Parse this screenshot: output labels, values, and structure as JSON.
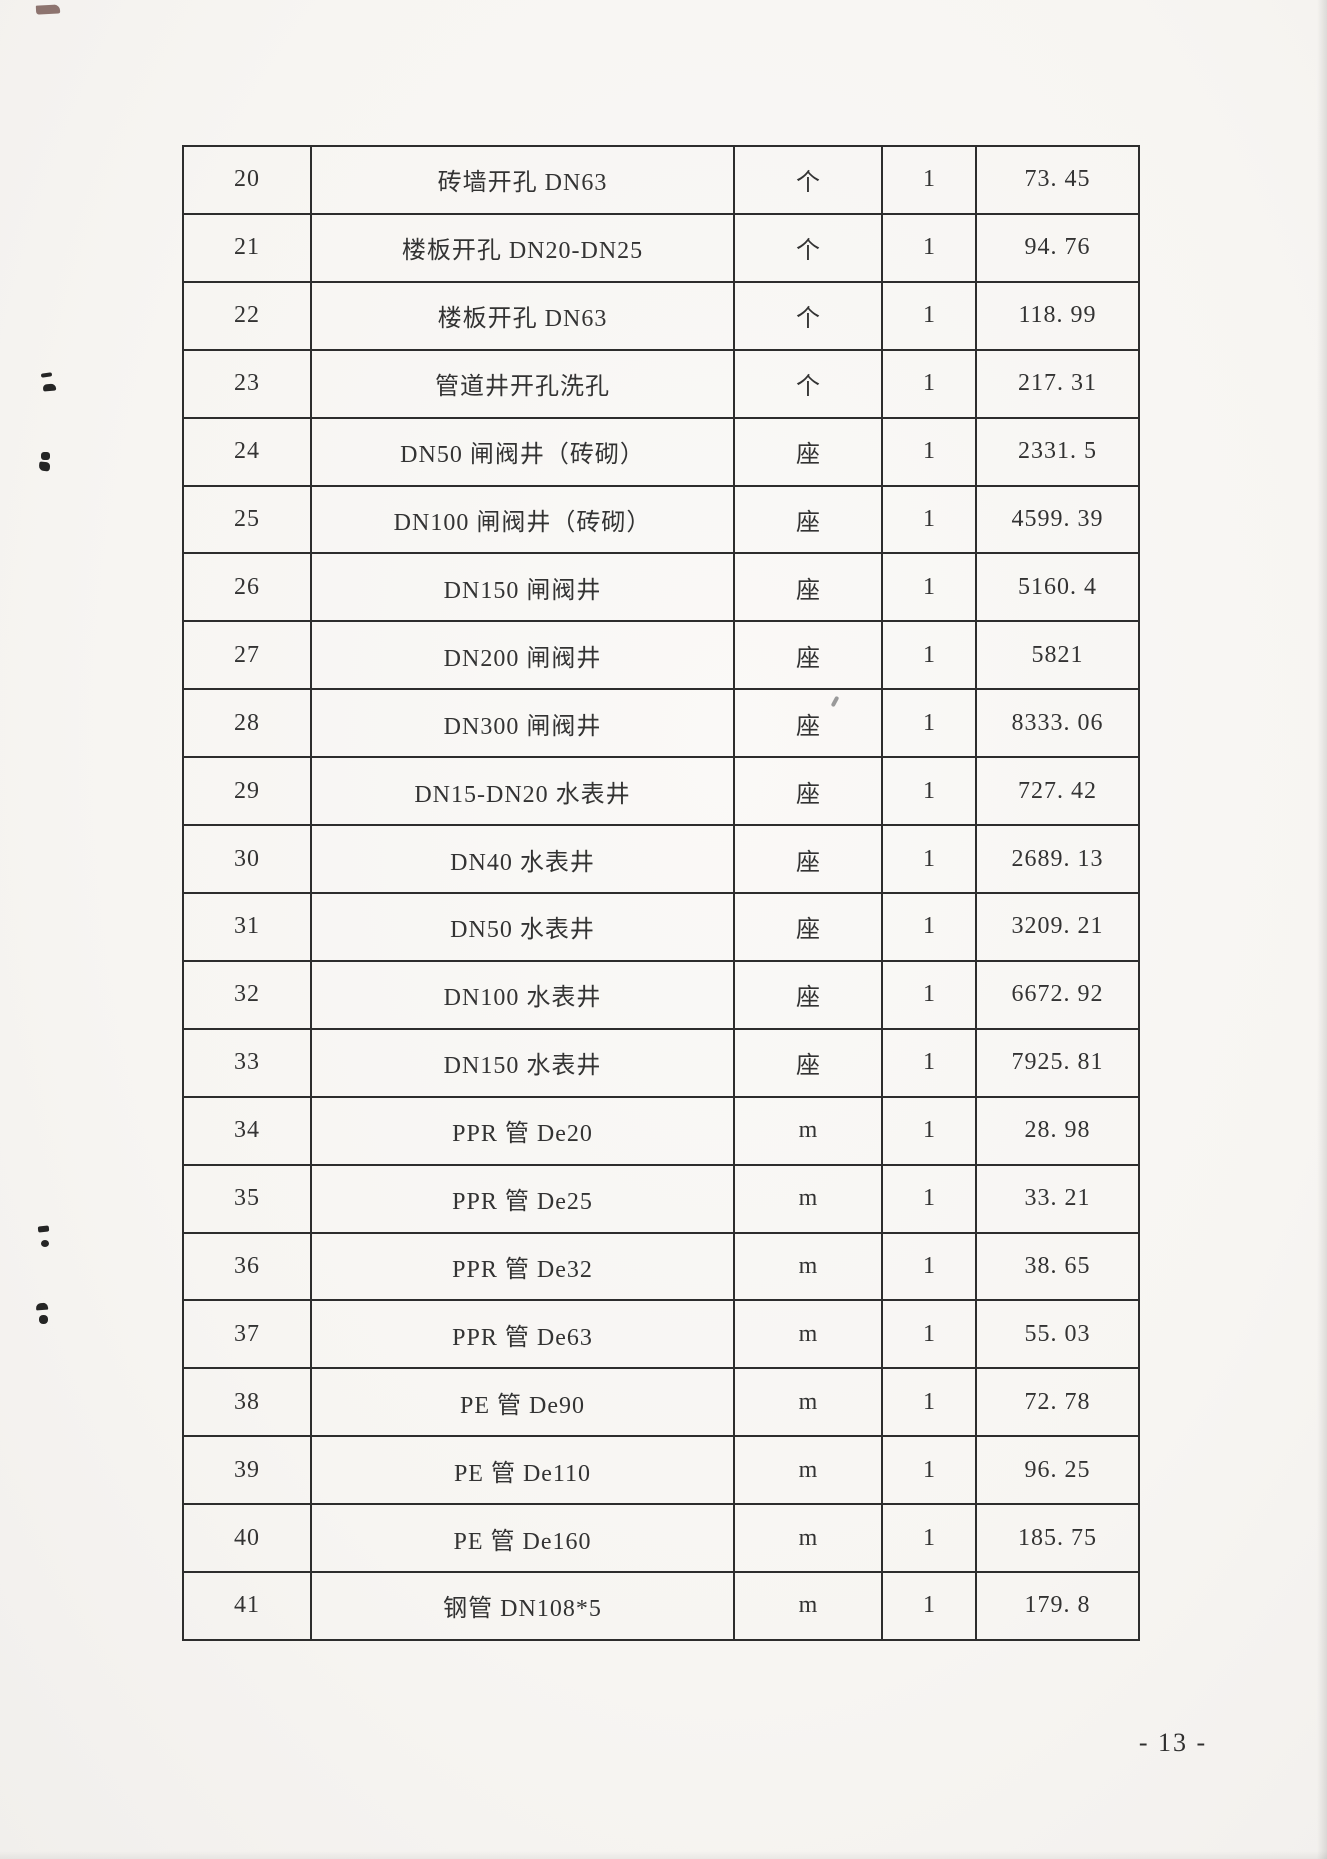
{
  "page": {
    "number_label": "- 13 -"
  },
  "colors": {
    "paper": "#f8f6f3",
    "ink": "#333333",
    "table_border": "#2d2d2d"
  },
  "table": {
    "rows": [
      {
        "no": "20",
        "desc": "砖墙开孔 DN63",
        "unit": "个",
        "qty": "1",
        "price": "73. 45"
      },
      {
        "no": "21",
        "desc": "楼板开孔 DN20-DN25",
        "unit": "个",
        "qty": "1",
        "price": "94. 76"
      },
      {
        "no": "22",
        "desc": "楼板开孔 DN63",
        "unit": "个",
        "qty": "1",
        "price": "118. 99"
      },
      {
        "no": "23",
        "desc": "管道井开孔洗孔",
        "unit": "个",
        "qty": "1",
        "price": "217. 31"
      },
      {
        "no": "24",
        "desc": "DN50 闸阀井（砖砌）",
        "unit": "座",
        "qty": "1",
        "price": "2331. 5"
      },
      {
        "no": "25",
        "desc": "DN100 闸阀井（砖砌）",
        "unit": "座",
        "qty": "1",
        "price": "4599. 39"
      },
      {
        "no": "26",
        "desc": "DN150 闸阀井",
        "unit": "座",
        "qty": "1",
        "price": "5160. 4"
      },
      {
        "no": "27",
        "desc": "DN200 闸阀井",
        "unit": "座",
        "qty": "1",
        "price": "5821"
      },
      {
        "no": "28",
        "desc": "DN300 闸阀井",
        "unit": "座",
        "qty": "1",
        "price": "8333. 06"
      },
      {
        "no": "29",
        "desc": "DN15-DN20 水表井",
        "unit": "座",
        "qty": "1",
        "price": "727. 42"
      },
      {
        "no": "30",
        "desc": "DN40 水表井",
        "unit": "座",
        "qty": "1",
        "price": "2689. 13"
      },
      {
        "no": "31",
        "desc": "DN50 水表井",
        "unit": "座",
        "qty": "1",
        "price": "3209. 21"
      },
      {
        "no": "32",
        "desc": "DN100 水表井",
        "unit": "座",
        "qty": "1",
        "price": "6672. 92"
      },
      {
        "no": "33",
        "desc": "DN150 水表井",
        "unit": "座",
        "qty": "1",
        "price": "7925. 81"
      },
      {
        "no": "34",
        "desc": "PPR 管 De20",
        "unit": "m",
        "qty": "1",
        "price": "28. 98"
      },
      {
        "no": "35",
        "desc": "PPR 管 De25",
        "unit": "m",
        "qty": "1",
        "price": "33. 21"
      },
      {
        "no": "36",
        "desc": "PPR 管 De32",
        "unit": "m",
        "qty": "1",
        "price": "38. 65"
      },
      {
        "no": "37",
        "desc": "PPR 管 De63",
        "unit": "m",
        "qty": "1",
        "price": "55. 03"
      },
      {
        "no": "38",
        "desc": "PE 管 De90",
        "unit": "m",
        "qty": "1",
        "price": "72. 78"
      },
      {
        "no": "39",
        "desc": "PE 管 De110",
        "unit": "m",
        "qty": "1",
        "price": "96. 25"
      },
      {
        "no": "40",
        "desc": "PE 管 De160",
        "unit": "m",
        "qty": "1",
        "price": "185. 75"
      },
      {
        "no": "41",
        "desc": "钢管 DN108*5",
        "unit": "m",
        "qty": "1",
        "price": "179. 8"
      }
    ]
  }
}
